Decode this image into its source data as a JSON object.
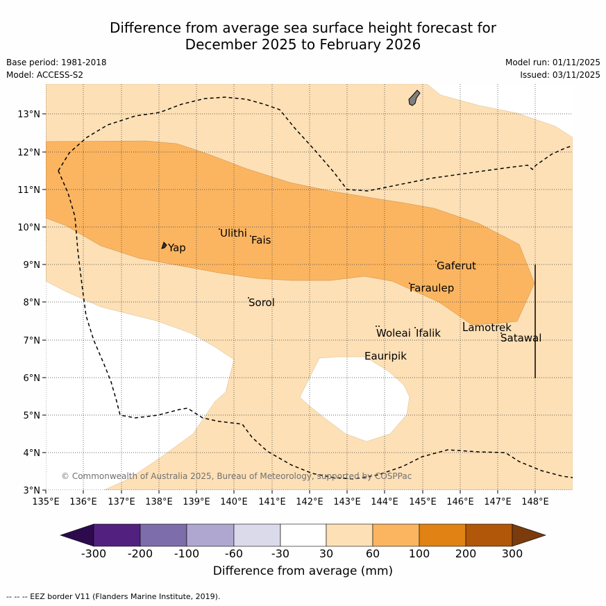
{
  "title": {
    "line1": "Difference from average sea surface height forecast for",
    "line2": "December 2025 to February 2026"
  },
  "meta": {
    "base_period": "Base period: 1981-2018",
    "model": "Model: ACCESS-S2",
    "model_run": "Model run: 01/11/2025",
    "issued": "Issued: 03/11/2025"
  },
  "copyright": "© Commonwealth of Australia 2025, Bureau of Meteorology, supported by COSPPac",
  "footer": "-- -- -- EEZ border V11 (Flanders Marine Institute, 2019).",
  "map": {
    "lon_range": [
      135,
      149
    ],
    "lat_range": [
      3,
      13.8
    ],
    "lon_ticks": [
      "135°E",
      "136°E",
      "137°E",
      "138°E",
      "139°E",
      "140°E",
      "141°E",
      "142°E",
      "143°E",
      "144°E",
      "145°E",
      "146°E",
      "147°E",
      "148°E"
    ],
    "lat_ticks": [
      "3°N",
      "4°N",
      "5°N",
      "6°N",
      "7°N",
      "8°N",
      "9°N",
      "10°N",
      "11°N",
      "12°N",
      "13°N"
    ],
    "places": [
      {
        "name": "Yap",
        "lon": 138.1,
        "lat": 9.5
      },
      {
        "name": "Ulithi",
        "lon": 139.7,
        "lat": 9.9
      },
      {
        "name": "Fais",
        "lon": 140.5,
        "lat": 9.75
      },
      {
        "name": "Sorol",
        "lon": 140.4,
        "lat": 8.1
      },
      {
        "name": "Gaferut",
        "lon": 145.4,
        "lat": 9.2
      },
      {
        "name": "Faraulep",
        "lon": 144.6,
        "lat": 8.6
      },
      {
        "name": "Lamotrek",
        "lon": 146.3,
        "lat": 7.4
      },
      {
        "name": "Woleai",
        "lon": 143.9,
        "lat": 7.3
      },
      {
        "name": "Ifalik",
        "lon": 144.9,
        "lat": 7.3
      },
      {
        "name": "Satawal",
        "lon": 147.0,
        "lat": 7.2
      },
      {
        "name": "Eauripik",
        "lon": 143.1,
        "lat": 6.7
      }
    ]
  },
  "colorbar": {
    "title": "Difference from average (mm)",
    "labels": [
      "-300",
      "-200",
      "-100",
      "-60",
      "-30",
      "30",
      "60",
      "100",
      "200",
      "300"
    ],
    "low_extend_color": "#2d0a4d",
    "colors": [
      "#522180",
      "#7d6dab",
      "#b0a7d1",
      "#dadaeb",
      "#ffffff",
      "#fde0b6",
      "#fbb561",
      "#e08314",
      "#b05709"
    ],
    "high_extend_color": "#7b3b0c"
  },
  "colors": {
    "band_30_60": "#fde0b6",
    "band_60_100": "#fbb561",
    "land": "#808080",
    "neutral": "#ffffff"
  }
}
